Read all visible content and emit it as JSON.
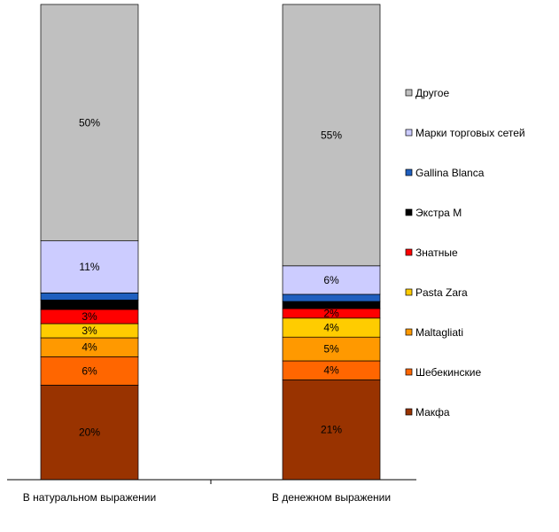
{
  "chart_data": {
    "type": "bar",
    "stacked": true,
    "categories": [
      "В натуральном выражении",
      "В денежном выражении"
    ],
    "ylim": [
      0,
      100
    ],
    "grid": false,
    "legend_position": "right",
    "series": [
      {
        "name": "Макфа",
        "color": "#993300",
        "values": [
          20,
          21
        ],
        "labels": [
          "20%",
          "21%"
        ]
      },
      {
        "name": "Шебекинские",
        "color": "#FF6600",
        "values": [
          6,
          4
        ],
        "labels": [
          "6%",
          "4%"
        ]
      },
      {
        "name": "Maltagliati",
        "color": "#FF9900",
        "values": [
          4,
          5
        ],
        "labels": [
          "4%",
          "5%"
        ]
      },
      {
        "name": "Pasta Zara",
        "color": "#FFCC00",
        "values": [
          3,
          4
        ],
        "labels": [
          "3%",
          "4%"
        ]
      },
      {
        "name": "Знатные",
        "color": "#FF0000",
        "values": [
          3,
          2
        ],
        "labels": [
          "3%",
          "2%"
        ]
      },
      {
        "name": "Экстра М",
        "color": "#000000",
        "values": [
          2,
          1.5
        ],
        "labels": [
          "",
          ""
        ]
      },
      {
        "name": "Gallina Blanca",
        "color": "#1F5FBF",
        "values": [
          1.5,
          1.5
        ],
        "labels": [
          "",
          ""
        ]
      },
      {
        "name": "Марки торговых сетей",
        "color": "#CCCCFF",
        "values": [
          11,
          6
        ],
        "labels": [
          "11%",
          "6%"
        ]
      },
      {
        "name": "Другое",
        "color": "#C0C0C0",
        "values": [
          50,
          55
        ],
        "labels": [
          "50%",
          "55%"
        ]
      }
    ]
  }
}
